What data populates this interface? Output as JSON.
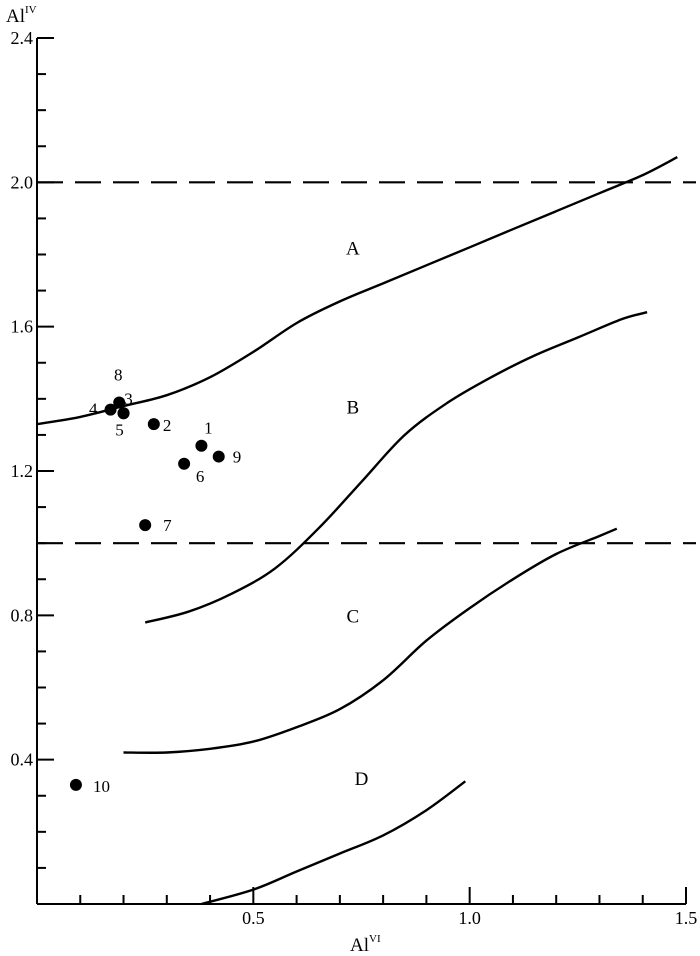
{
  "chart_data": {
    "type": "scatter",
    "title": "",
    "xlabel": "Al",
    "xlabel_sup": "VI",
    "ylabel": "Al",
    "ylabel_sup": "IV",
    "xlim": [
      0.0,
      1.5
    ],
    "ylim": [
      0.0,
      2.4
    ],
    "x_ticks": [
      {
        "value": 0.5,
        "label": "0.5"
      },
      {
        "value": 1.0,
        "label": "1.0"
      },
      {
        "value": 1.5,
        "label": "1.5"
      }
    ],
    "y_ticks": [
      {
        "value": 0.4,
        "label": "0.4"
      },
      {
        "value": 0.8,
        "label": "0.8"
      },
      {
        "value": 1.2,
        "label": "1.2"
      },
      {
        "value": 1.6,
        "label": "1.6"
      },
      {
        "value": 2.0,
        "label": "2.0"
      },
      {
        "value": 2.4,
        "label": "2.4"
      }
    ],
    "x_minor_step": 0.1,
    "y_minor_step": 0.1,
    "grid": false,
    "legend": "none",
    "dashed_lines": [
      {
        "y": 2.0
      },
      {
        "y": 1.0
      }
    ],
    "boundary_curves": [
      [
        [
          0.0,
          1.33
        ],
        [
          0.1,
          1.35
        ],
        [
          0.2,
          1.38
        ],
        [
          0.3,
          1.41
        ],
        [
          0.4,
          1.46
        ],
        [
          0.5,
          1.53
        ],
        [
          0.6,
          1.61
        ],
        [
          0.7,
          1.67
        ],
        [
          0.8,
          1.72
        ],
        [
          0.9,
          1.77
        ],
        [
          1.0,
          1.82
        ],
        [
          1.1,
          1.87
        ],
        [
          1.2,
          1.92
        ],
        [
          1.3,
          1.97
        ],
        [
          1.4,
          2.02
        ],
        [
          1.48,
          2.07
        ]
      ],
      [
        [
          0.25,
          0.78
        ],
        [
          0.35,
          0.81
        ],
        [
          0.45,
          0.86
        ],
        [
          0.55,
          0.93
        ],
        [
          0.65,
          1.04
        ],
        [
          0.75,
          1.17
        ],
        [
          0.85,
          1.3
        ],
        [
          0.95,
          1.39
        ],
        [
          1.05,
          1.46
        ],
        [
          1.15,
          1.52
        ],
        [
          1.25,
          1.57
        ],
        [
          1.35,
          1.62
        ],
        [
          1.41,
          1.64
        ]
      ],
      [
        [
          0.2,
          0.42
        ],
        [
          0.3,
          0.42
        ],
        [
          0.4,
          0.43
        ],
        [
          0.5,
          0.45
        ],
        [
          0.6,
          0.49
        ],
        [
          0.7,
          0.54
        ],
        [
          0.8,
          0.62
        ],
        [
          0.9,
          0.73
        ],
        [
          1.0,
          0.82
        ],
        [
          1.1,
          0.9
        ],
        [
          1.2,
          0.97
        ],
        [
          1.3,
          1.02
        ],
        [
          1.34,
          1.04
        ]
      ],
      [
        [
          0.38,
          0.0
        ],
        [
          0.5,
          0.04
        ],
        [
          0.6,
          0.09
        ],
        [
          0.7,
          0.14
        ],
        [
          0.8,
          0.19
        ],
        [
          0.9,
          0.26
        ],
        [
          0.99,
          0.34
        ]
      ]
    ],
    "region_labels": [
      {
        "text": "A",
        "x": 0.73,
        "y": 1.8
      },
      {
        "text": "B",
        "x": 0.73,
        "y": 1.36
      },
      {
        "text": "C",
        "x": 0.73,
        "y": 0.78
      },
      {
        "text": "D",
        "x": 0.75,
        "y": 0.33
      }
    ],
    "points": [
      {
        "label": "1",
        "x": 0.38,
        "y": 1.27
      },
      {
        "label": "2",
        "x": 0.27,
        "y": 1.33
      },
      {
        "label": "3",
        "x": 0.2,
        "y": 1.36
      },
      {
        "label": "4",
        "x": 0.17,
        "y": 1.37
      },
      {
        "label": "5",
        "x": 0.2,
        "y": 1.36
      },
      {
        "label": "6",
        "x": 0.34,
        "y": 1.22
      },
      {
        "label": "7",
        "x": 0.25,
        "y": 1.05
      },
      {
        "label": "8",
        "x": 0.19,
        "y": 1.39
      },
      {
        "label": "9",
        "x": 0.42,
        "y": 1.24
      },
      {
        "label": "10",
        "x": 0.09,
        "y": 0.33
      }
    ]
  }
}
